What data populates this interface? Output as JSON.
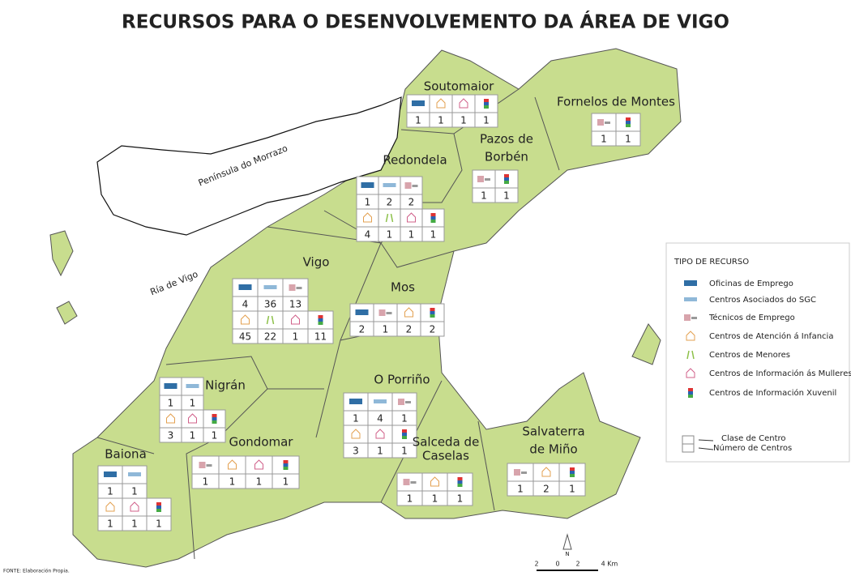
{
  "title": "RECURSOS PARA O DESENVOLVEMENTO DA ÁREA DE VIGO",
  "sea_labels": [
    "Península do Morrazo",
    "Ría de Vigo"
  ],
  "regions": [
    {
      "name": [
        "Soutomaior"
      ],
      "counts": [
        [
          1,
          1,
          1,
          1
        ]
      ]
    },
    {
      "name": [
        "Fornelos de Montes"
      ],
      "counts": [
        [
          1,
          1
        ]
      ]
    },
    {
      "name": [
        "Pazos de",
        "Borbén"
      ],
      "counts": [
        [
          1,
          1
        ]
      ]
    },
    {
      "name": [
        "Redondela"
      ],
      "counts": [
        [
          1,
          2,
          2
        ],
        [
          4,
          1,
          1,
          1
        ]
      ]
    },
    {
      "name": [
        "Vigo"
      ],
      "counts": [
        [
          4,
          36,
          13
        ],
        [
          45,
          22,
          1,
          11
        ]
      ]
    },
    {
      "name": [
        "Mos"
      ],
      "counts": [
        [
          2,
          1,
          2,
          2
        ]
      ]
    },
    {
      "name": [
        "Nigrán"
      ],
      "counts": [
        [
          1,
          1
        ],
        [
          3,
          1,
          1
        ]
      ]
    },
    {
      "name": [
        "O Porriño"
      ],
      "counts": [
        [
          1,
          4,
          1
        ],
        [
          3,
          1,
          1
        ]
      ]
    },
    {
      "name": [
        "Gondomar"
      ],
      "counts": [
        [
          1,
          1,
          1,
          1
        ]
      ]
    },
    {
      "name": [
        "Baiona"
      ],
      "counts": [
        [
          1,
          1
        ],
        [
          1,
          1,
          1
        ]
      ]
    },
    {
      "name": [
        "Salceda de",
        "Caselas"
      ],
      "counts": [
        [
          1,
          1,
          1
        ]
      ]
    },
    {
      "name": [
        "Salvaterra",
        "de Miño"
      ],
      "counts": [
        [
          1,
          2,
          1
        ]
      ]
    }
  ],
  "legend": {
    "title": "TIPO DE RECURSO",
    "items": [
      "Oficinas de Emprego",
      "Centros Asociados do SGC",
      "Técnicos de Emprego",
      "Centros de Atención á Infancia",
      "Centros de Menores",
      "Centros de Información ás Mulleres",
      "Centros de Información Xuvenil"
    ],
    "key": [
      "Clase de Centro",
      "Número de Centros"
    ]
  },
  "scale": [
    "2",
    "0",
    "2",
    "4 Km"
  ],
  "north": "N",
  "source": "FONTE: Elaboración Propia."
}
